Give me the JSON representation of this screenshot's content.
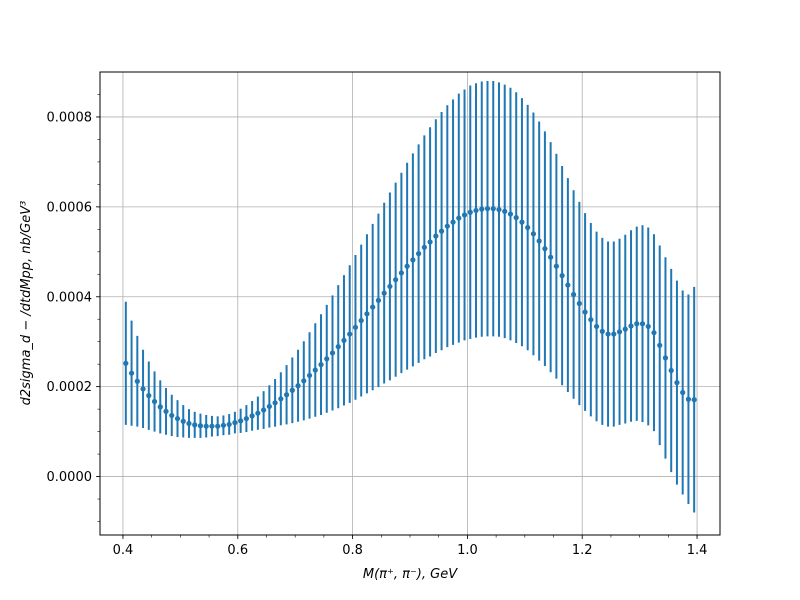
{
  "chart_data": {
    "type": "scatter",
    "error_bars": true,
    "xlabel": "M(π⁺, π⁻), GeV",
    "ylabel": "d2sigma_d − /dtdMpp, nb/GeV³",
    "xlim": [
      0.36,
      1.44
    ],
    "ylim": [
      -0.00013,
      0.0009
    ],
    "xticks": [
      0.4,
      0.6,
      0.8,
      1.0,
      1.2,
      1.4
    ],
    "xtick_labels": [
      "0.4",
      "0.6",
      "0.8",
      "1.0",
      "1.2",
      "1.4"
    ],
    "yticks": [
      0.0,
      0.0002,
      0.0004,
      0.0006,
      0.0008
    ],
    "ytick_labels": [
      "0.0000",
      "0.0002",
      "0.0004",
      "0.0006",
      "0.0008"
    ],
    "grid": true,
    "color": "#1f77b4",
    "x": [
      0.405,
      0.415,
      0.425,
      0.435,
      0.445,
      0.455,
      0.465,
      0.475,
      0.485,
      0.495,
      0.505,
      0.515,
      0.525,
      0.535,
      0.545,
      0.555,
      0.565,
      0.575,
      0.585,
      0.595,
      0.605,
      0.615,
      0.625,
      0.635,
      0.645,
      0.655,
      0.665,
      0.675,
      0.685,
      0.695,
      0.705,
      0.715,
      0.725,
      0.735,
      0.745,
      0.755,
      0.765,
      0.775,
      0.785,
      0.795,
      0.805,
      0.815,
      0.825,
      0.835,
      0.845,
      0.855,
      0.865,
      0.875,
      0.885,
      0.895,
      0.905,
      0.915,
      0.925,
      0.935,
      0.945,
      0.955,
      0.965,
      0.975,
      0.985,
      0.995,
      1.005,
      1.015,
      1.025,
      1.035,
      1.045,
      1.055,
      1.065,
      1.075,
      1.085,
      1.095,
      1.105,
      1.115,
      1.125,
      1.135,
      1.145,
      1.155,
      1.165,
      1.175,
      1.185,
      1.195,
      1.205,
      1.215,
      1.225,
      1.235,
      1.245,
      1.255,
      1.265,
      1.275,
      1.285,
      1.295,
      1.305,
      1.315,
      1.325,
      1.335,
      1.345,
      1.355,
      1.365,
      1.375,
      1.385,
      1.395
    ],
    "y": [
      0.000252,
      0.00023,
      0.000212,
      0.000195,
      0.00018,
      0.000167,
      0.000155,
      0.000145,
      0.000136,
      0.000129,
      0.000123,
      0.000118,
      0.000115,
      0.000113,
      0.000112,
      0.000112,
      0.000112,
      0.000114,
      0.000116,
      0.00012,
      0.000124,
      0.000129,
      0.000135,
      0.000141,
      0.000148,
      0.000156,
      0.000164,
      0.000173,
      0.000182,
      0.000192,
      0.000202,
      0.000213,
      0.000225,
      0.000237,
      0.000249,
      0.000262,
      0.000275,
      0.000289,
      0.000303,
      0.000317,
      0.000332,
      0.000347,
      0.000362,
      0.000377,
      0.000392,
      0.000408,
      0.000423,
      0.000438,
      0.000453,
      0.000468,
      0.000482,
      0.000496,
      0.00051,
      0.000522,
      0.000535,
      0.000546,
      0.000557,
      0.000566,
      0.000575,
      0.000582,
      0.000588,
      0.000592,
      0.000595,
      0.000596,
      0.000596,
      0.000594,
      0.00059,
      0.000584,
      0.000576,
      0.000566,
      0.000554,
      0.00054,
      0.000524,
      0.000507,
      0.000488,
      0.000468,
      0.000447,
      0.000426,
      0.000405,
      0.000385,
      0.000366,
      0.000349,
      0.000334,
      0.000323,
      0.000317,
      0.000317,
      0.000322,
      0.000328,
      0.000335,
      0.00034,
      0.00034,
      0.000334,
      0.00032,
      0.000292,
      0.000264,
      0.000236,
      0.000209,
      0.000187,
      0.000172,
      0.000171
    ],
    "yerr_low": [
      0.000137,
      0.000117,
      0.000101,
      8.7e-05,
      7.6e-05,
      6.7e-05,
      5.9e-05,
      5.2e-05,
      4.6e-05,
      4.1e-05,
      3.6e-05,
      3.2e-05,
      2.9e-05,
      2.7e-05,
      2.5e-05,
      2.3e-05,
      2.2e-05,
      2.2e-05,
      2.3e-05,
      2.4e-05,
      2.7e-05,
      3e-05,
      3.3e-05,
      3.7e-05,
      4.2e-05,
      4.7e-05,
      5.3e-05,
      5.9e-05,
      6.6e-05,
      7.3e-05,
      8e-05,
      8.8e-05,
      9.6e-05,
      0.000104,
      0.000112,
      0.00012,
      0.000128,
      0.000137,
      0.000145,
      0.000153,
      0.000161,
      0.000169,
      0.000177,
      0.000185,
      0.000193,
      0.000201,
      0.000209,
      0.000216,
      0.000223,
      0.00023,
      0.000237,
      0.000243,
      0.000249,
      0.000255,
      0.00026,
      0.000265,
      0.000269,
      0.000273,
      0.000277,
      0.000279,
      0.000282,
      0.000283,
      0.000284,
      0.000284,
      0.000284,
      0.000283,
      0.000282,
      0.000281,
      0.000279,
      0.000276,
      0.000273,
      0.00027,
      0.000266,
      0.000261,
      0.000256,
      0.00025,
      0.000244,
      0.000238,
      0.000232,
      0.000226,
      0.00022,
      0.000215,
      0.000211,
      0.000208,
      0.000206,
      0.000206,
      0.000207,
      0.00021,
      0.000213,
      0.000216,
      0.000219,
      0.00022,
      0.000219,
      0.000222,
      0.000224,
      0.000226,
      0.000227,
      0.000227,
      0.000233,
      0.000251
    ],
    "yerr_high": [
      0.000137,
      0.000117,
      0.000101,
      8.7e-05,
      7.6e-05,
      6.7e-05,
      5.9e-05,
      5.2e-05,
      4.6e-05,
      4.1e-05,
      3.6e-05,
      3.2e-05,
      2.9e-05,
      2.7e-05,
      2.5e-05,
      2.3e-05,
      2.2e-05,
      2.2e-05,
      2.3e-05,
      2.4e-05,
      2.7e-05,
      3e-05,
      3.3e-05,
      3.7e-05,
      4.2e-05,
      4.7e-05,
      5.3e-05,
      5.9e-05,
      6.6e-05,
      7.3e-05,
      8e-05,
      8.8e-05,
      9.6e-05,
      0.000104,
      0.000112,
      0.00012,
      0.000128,
      0.000137,
      0.000145,
      0.000153,
      0.000161,
      0.000169,
      0.000177,
      0.000185,
      0.000193,
      0.000201,
      0.000209,
      0.000216,
      0.000223,
      0.00023,
      0.000237,
      0.000243,
      0.000249,
      0.000255,
      0.00026,
      0.000265,
      0.000269,
      0.000273,
      0.000277,
      0.000279,
      0.000282,
      0.000283,
      0.000284,
      0.000284,
      0.000284,
      0.000283,
      0.000282,
      0.000281,
      0.000279,
      0.000276,
      0.000273,
      0.00027,
      0.000266,
      0.000261,
      0.000256,
      0.00025,
      0.000244,
      0.000238,
      0.000232,
      0.000226,
      0.00022,
      0.000215,
      0.000211,
      0.000208,
      0.000206,
      0.000206,
      0.000207,
      0.00021,
      0.000213,
      0.000216,
      0.000219,
      0.00022,
      0.000219,
      0.000222,
      0.000224,
      0.000226,
      0.000227,
      0.000227,
      0.000233,
      0.000251
    ]
  }
}
